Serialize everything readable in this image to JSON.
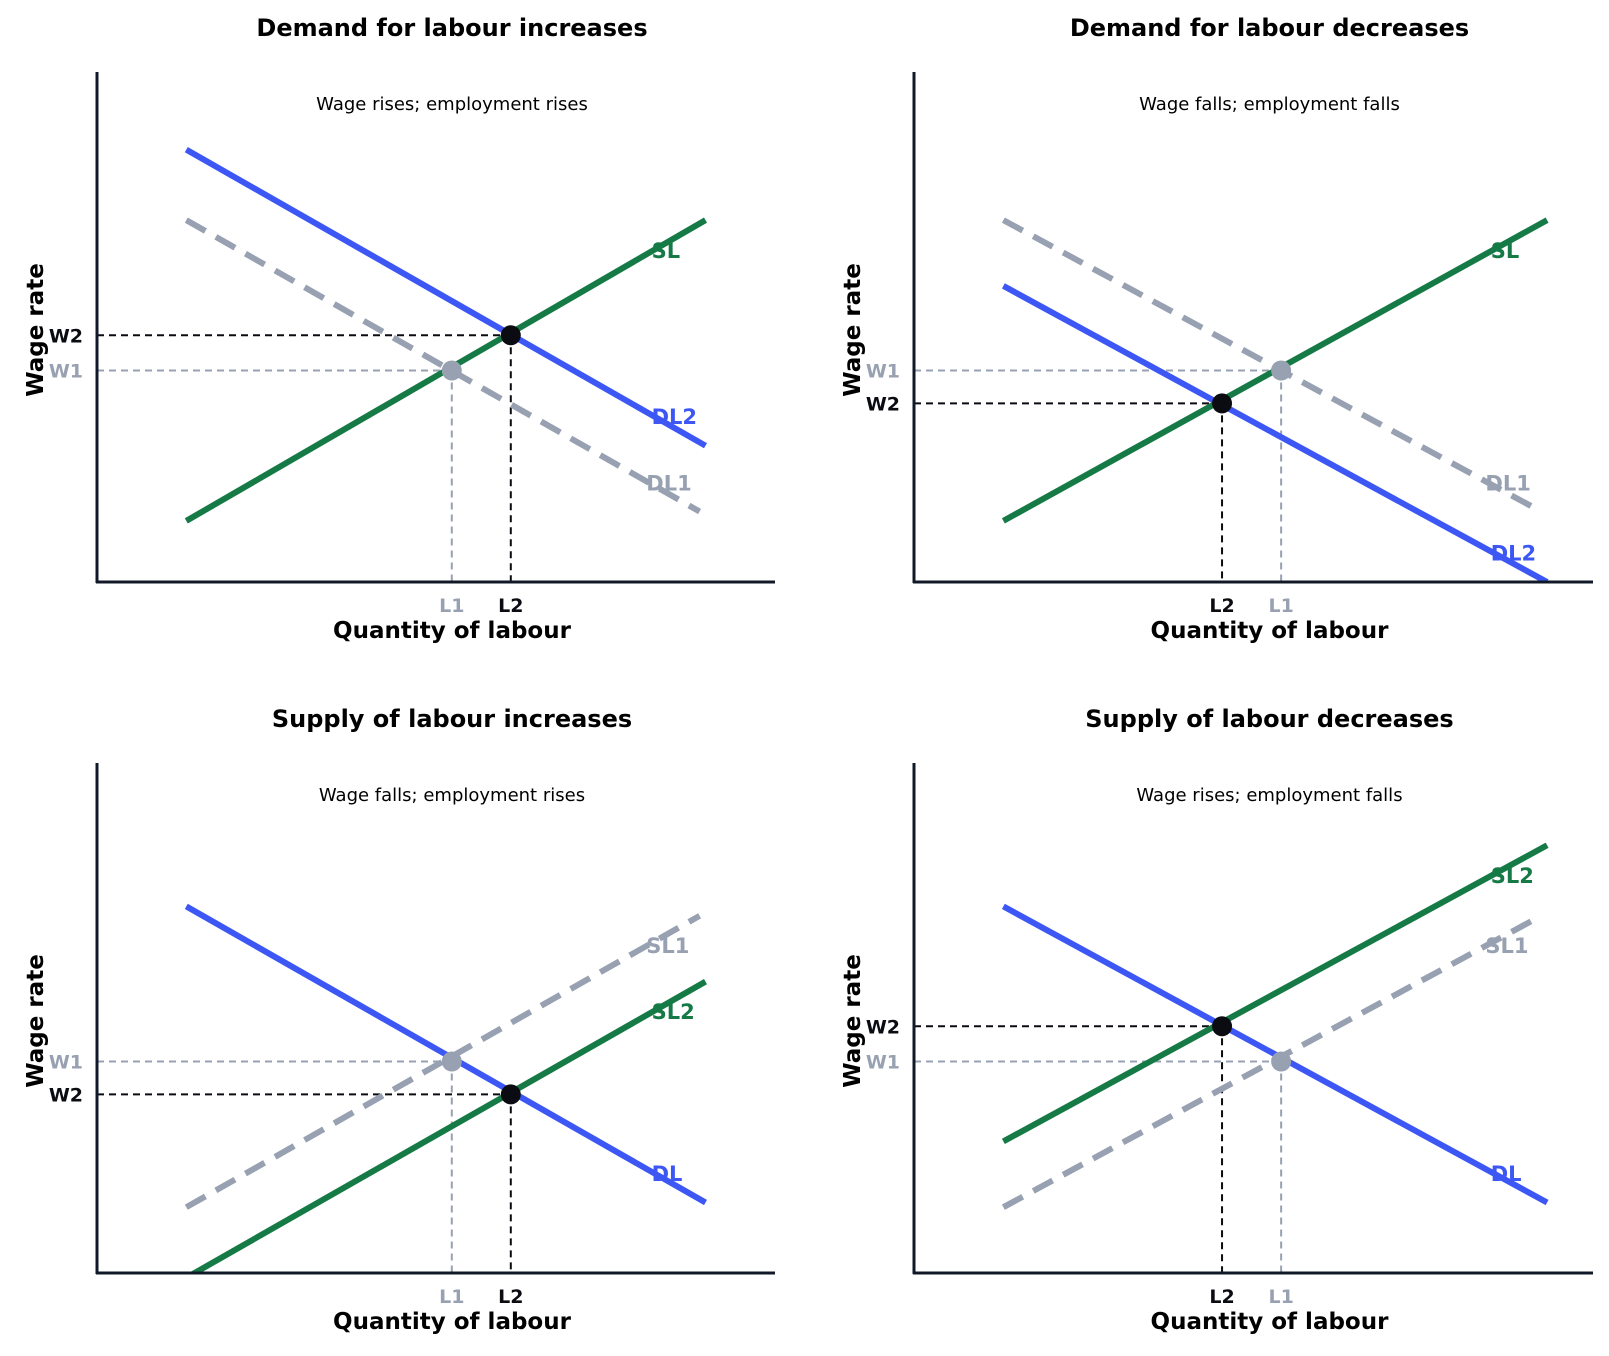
{
  "colors": {
    "demand": "#3d57f5",
    "supply": "#157a45",
    "old": "#98a1b1",
    "new_point": "#0b0c12",
    "axis": "#111827"
  },
  "chart_data": [
    {
      "type": "line",
      "title": "Demand for labour increases",
      "note": "Wage rises; employment rises",
      "xlabel": "Quantity of labour",
      "ylabel": "Wage rate",
      "xlim": [
        0,
        10
      ],
      "ylim": [
        0,
        10
      ],
      "series": [
        {
          "name": "SL",
          "role": "supply",
          "style": "solid",
          "x": [
            0.7,
            9.5
          ],
          "y": [
            1.3,
            7.7
          ]
        },
        {
          "name": "DL1",
          "role": "old",
          "style": "dashed",
          "x": [
            0.7,
            9.4
          ],
          "y": [
            7.7,
            1.5
          ]
        },
        {
          "name": "DL2",
          "role": "demand",
          "style": "solid",
          "x": [
            0.7,
            9.5
          ],
          "y": [
            9.2,
            2.9
          ]
        }
      ],
      "points": [
        {
          "x": 5.2,
          "y": 4.5,
          "role": "old",
          "wage_label": "W1",
          "qty_label": "L1"
        },
        {
          "x": 6.2,
          "y": 5.25,
          "role": "new",
          "wage_label": "W2",
          "qty_label": "L2"
        }
      ],
      "wage_tick_labels": [
        "W2",
        "W1"
      ],
      "qty_tick_labels": [
        "L1",
        "L2"
      ]
    },
    {
      "type": "line",
      "title": "Demand for labour decreases",
      "note": "Wage falls; employment falls",
      "xlabel": "Quantity of labour",
      "ylabel": "Wage rate",
      "xlim": [
        0,
        10
      ],
      "ylim": [
        0,
        10
      ],
      "series": [
        {
          "name": "SL",
          "role": "supply",
          "style": "solid",
          "x": [
            0.7,
            9.9
          ],
          "y": [
            1.3,
            7.7
          ]
        },
        {
          "name": "DL1",
          "role": "old",
          "style": "dashed",
          "x": [
            0.7,
            9.8
          ],
          "y": [
            7.7,
            1.5
          ]
        },
        {
          "name": "DL2",
          "role": "demand",
          "style": "solid",
          "x": [
            0.7,
            9.9
          ],
          "y": [
            6.3,
            0.0
          ]
        }
      ],
      "points": [
        {
          "x": 5.4,
          "y": 4.5,
          "role": "old",
          "wage_label": "W1",
          "qty_label": "L1"
        },
        {
          "x": 4.4,
          "y": 3.8,
          "role": "new",
          "wage_label": "W2",
          "qty_label": "L2"
        }
      ],
      "wage_tick_labels": [
        "W1",
        "W2"
      ],
      "qty_tick_labels": [
        "L2",
        "L1"
      ]
    },
    {
      "type": "line",
      "title": "Supply of labour increases",
      "note": "Wage falls; employment rises",
      "xlabel": "Quantity of labour",
      "ylabel": "Wage rate",
      "xlim": [
        0,
        10
      ],
      "ylim": [
        0,
        10
      ],
      "series": [
        {
          "name": "DL",
          "role": "demand",
          "style": "solid",
          "x": [
            0.7,
            9.5
          ],
          "y": [
            7.8,
            1.5
          ]
        },
        {
          "name": "SL1",
          "role": "old",
          "style": "dashed",
          "x": [
            0.7,
            9.4
          ],
          "y": [
            1.4,
            7.6
          ]
        },
        {
          "name": "SL2",
          "role": "supply",
          "style": "solid",
          "x": [
            0.7,
            9.5
          ],
          "y": [
            -0.1,
            6.2
          ]
        }
      ],
      "points": [
        {
          "x": 5.2,
          "y": 4.5,
          "role": "old",
          "wage_label": "W1",
          "qty_label": "L1"
        },
        {
          "x": 6.2,
          "y": 3.8,
          "role": "new",
          "wage_label": "W2",
          "qty_label": "L2"
        }
      ],
      "wage_tick_labels": [
        "W1",
        "W2"
      ],
      "qty_tick_labels": [
        "L1",
        "L2"
      ]
    },
    {
      "type": "line",
      "title": "Supply of labour decreases",
      "note": "Wage rises; employment falls",
      "xlabel": "Quantity of labour",
      "ylabel": "Wage rate",
      "xlim": [
        0,
        10
      ],
      "ylim": [
        0,
        10
      ],
      "series": [
        {
          "name": "DL",
          "role": "demand",
          "style": "solid",
          "x": [
            0.7,
            9.9
          ],
          "y": [
            7.8,
            1.5
          ]
        },
        {
          "name": "SL1",
          "role": "old",
          "style": "dashed",
          "x": [
            0.7,
            9.8
          ],
          "y": [
            1.4,
            7.6
          ]
        },
        {
          "name": "SL2",
          "role": "supply",
          "style": "solid",
          "x": [
            0.7,
            9.9
          ],
          "y": [
            2.8,
            9.1
          ]
        }
      ],
      "points": [
        {
          "x": 5.4,
          "y": 4.5,
          "role": "old",
          "wage_label": "W1",
          "qty_label": "L1"
        },
        {
          "x": 4.4,
          "y": 5.25,
          "role": "new",
          "wage_label": "W2",
          "qty_label": "L2"
        }
      ],
      "wage_tick_labels": [
        "W2",
        "W1"
      ],
      "qty_tick_labels": [
        "L2",
        "L1"
      ]
    }
  ]
}
